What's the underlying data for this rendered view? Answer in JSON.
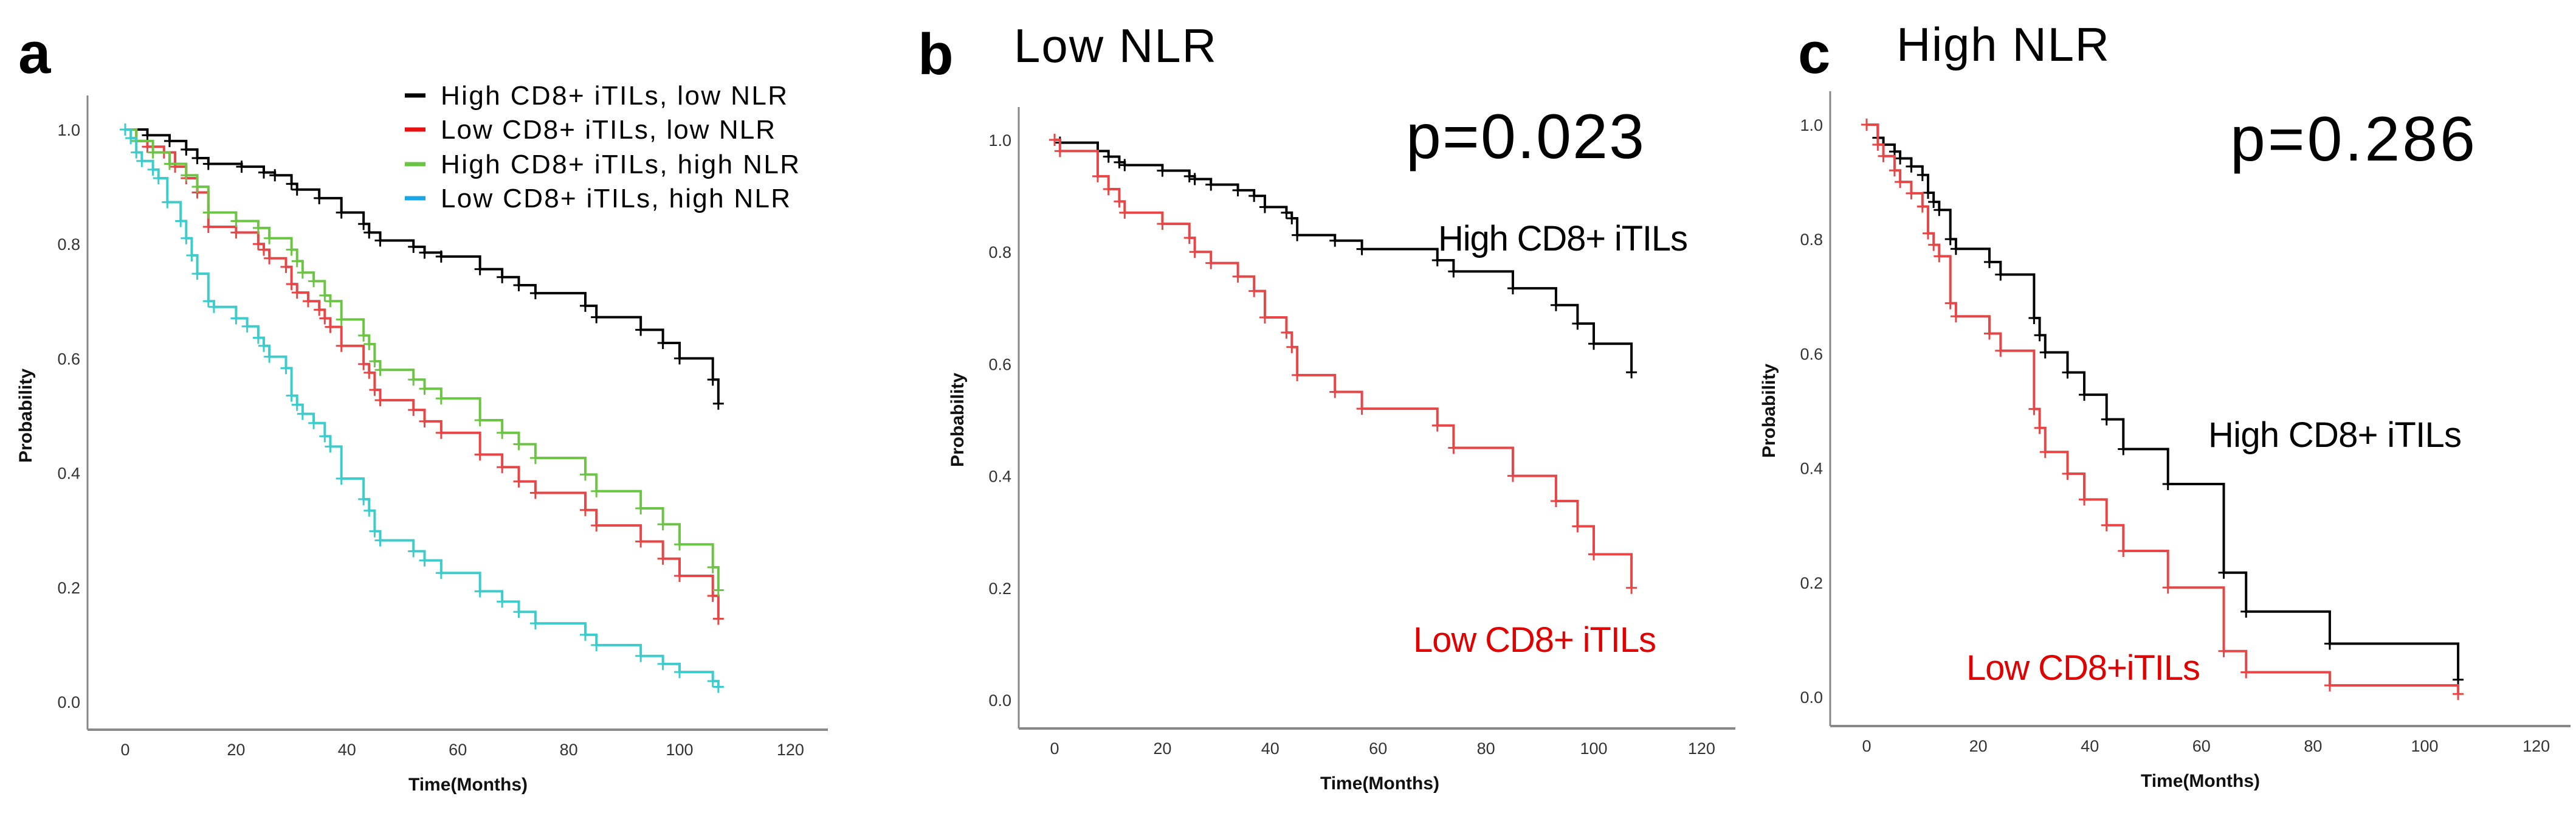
{
  "figure": {
    "panels": [
      {
        "letter": "a",
        "title": "",
        "p_value": ""
      },
      {
        "letter": "b",
        "title": "Low NLR",
        "p_value": "p=0.023"
      },
      {
        "letter": "c",
        "title": "High NLR",
        "p_value": "p=0.286"
      }
    ]
  },
  "colors": {
    "black": "#000000",
    "red": "#e84646",
    "green": "#6cc444",
    "cyan": "#3ccccc",
    "legend_blue": "#1aa6e6",
    "annotation_red": "#e00000"
  },
  "chart_data": [
    {
      "type": "line",
      "title": "",
      "xlabel": "Time(Months)",
      "ylabel": "Probability",
      "xlim": [
        0,
        120
      ],
      "ylim": [
        0,
        1
      ],
      "xticks": [
        "0",
        "20",
        "40",
        "60",
        "80",
        "100",
        "120"
      ],
      "yticks": [
        "0.0",
        "0.2",
        "0.4",
        "0.6",
        "0.8",
        "1.0"
      ],
      "grid": false,
      "legend_position": "top-right",
      "series": [
        {
          "name": "High CD8+ iTILs, low NLR",
          "color": "#000000",
          "legend_color": "#000000",
          "steps": [
            [
              0,
              1
            ],
            [
              4,
              0.99
            ],
            [
              8,
              0.98
            ],
            [
              11,
              0.965
            ],
            [
              13,
              0.95
            ],
            [
              15,
              0.94
            ],
            [
              21,
              0.935
            ],
            [
              25,
              0.925
            ],
            [
              27,
              0.92
            ],
            [
              30,
              0.905
            ],
            [
              31,
              0.895
            ],
            [
              35,
              0.88
            ],
            [
              39,
              0.855
            ],
            [
              43,
              0.835
            ],
            [
              44,
              0.82
            ],
            [
              46,
              0.806
            ],
            [
              52,
              0.795
            ],
            [
              54,
              0.785
            ],
            [
              57,
              0.778
            ],
            [
              64,
              0.756
            ],
            [
              68,
              0.742
            ],
            [
              71,
              0.728
            ],
            [
              74,
              0.714
            ],
            [
              83,
              0.692
            ],
            [
              85,
              0.672
            ],
            [
              93,
              0.65
            ],
            [
              97,
              0.627
            ],
            [
              100,
              0.6
            ],
            [
              106,
              0.563
            ],
            [
              107,
              0.521
            ]
          ]
        },
        {
          "name": "Low CD8+ iTILs, low NLR",
          "color": "#e84646",
          "legend_color": "#e81010",
          "steps": [
            [
              0,
              1
            ],
            [
              2,
              0.98
            ],
            [
              4,
              0.97
            ],
            [
              7,
              0.96
            ],
            [
              9,
              0.935
            ],
            [
              11,
              0.915
            ],
            [
              13,
              0.89
            ],
            [
              15,
              0.83
            ],
            [
              20,
              0.82
            ],
            [
              24,
              0.8
            ],
            [
              25,
              0.79
            ],
            [
              26,
              0.775
            ],
            [
              29,
              0.76
            ],
            [
              30,
              0.73
            ],
            [
              31,
              0.715
            ],
            [
              33,
              0.7
            ],
            [
              35,
              0.685
            ],
            [
              36,
              0.67
            ],
            [
              37,
              0.655
            ],
            [
              39,
              0.622
            ],
            [
              43,
              0.59
            ],
            [
              44,
              0.575
            ],
            [
              45,
              0.545
            ],
            [
              46,
              0.527
            ],
            [
              52,
              0.51
            ],
            [
              54,
              0.49
            ],
            [
              57,
              0.47
            ],
            [
              64,
              0.432
            ],
            [
              68,
              0.41
            ],
            [
              71,
              0.385
            ],
            [
              74,
              0.365
            ],
            [
              83,
              0.335
            ],
            [
              85,
              0.308
            ],
            [
              93,
              0.28
            ],
            [
              97,
              0.25
            ],
            [
              100,
              0.22
            ],
            [
              106,
              0.185
            ],
            [
              107,
              0.145
            ]
          ]
        },
        {
          "name": "High CD8+ iTILs, high NLR",
          "color": "#6cc444",
          "legend_color": "#6cc444",
          "steps": [
            [
              0,
              1
            ],
            [
              2,
              0.98
            ],
            [
              5,
              0.96
            ],
            [
              8,
              0.94
            ],
            [
              11,
              0.92
            ],
            [
              13,
              0.9
            ],
            [
              15,
              0.855
            ],
            [
              20,
              0.84
            ],
            [
              24,
              0.828
            ],
            [
              26,
              0.81
            ],
            [
              30,
              0.79
            ],
            [
              31,
              0.77
            ],
            [
              32,
              0.75
            ],
            [
              34,
              0.735
            ],
            [
              36,
              0.71
            ],
            [
              37,
              0.7
            ],
            [
              39,
              0.668
            ],
            [
              43,
              0.64
            ],
            [
              44,
              0.625
            ],
            [
              45,
              0.595
            ],
            [
              46,
              0.58
            ],
            [
              52,
              0.563
            ],
            [
              54,
              0.547
            ],
            [
              57,
              0.53
            ],
            [
              64,
              0.492
            ],
            [
              68,
              0.47
            ],
            [
              71,
              0.45
            ],
            [
              74,
              0.426
            ],
            [
              83,
              0.397
            ],
            [
              85,
              0.368
            ],
            [
              93,
              0.338
            ],
            [
              97,
              0.31
            ],
            [
              100,
              0.275
            ],
            [
              106,
              0.235
            ],
            [
              107,
              0.195
            ]
          ]
        },
        {
          "name": "Low CD8+ iTILs, high NLR",
          "color": "#3ccccc",
          "legend_color": "#1aa6e6",
          "steps": [
            [
              0,
              1
            ],
            [
              1,
              0.985
            ],
            [
              2,
              0.96
            ],
            [
              3,
              0.945
            ],
            [
              5,
              0.93
            ],
            [
              6,
              0.915
            ],
            [
              7.6,
              0.873
            ],
            [
              10,
              0.84
            ],
            [
              11,
              0.81
            ],
            [
              12,
              0.78
            ],
            [
              13,
              0.748
            ],
            [
              15,
              0.7
            ],
            [
              16,
              0.69
            ],
            [
              20,
              0.67
            ],
            [
              22,
              0.656
            ],
            [
              24,
              0.636
            ],
            [
              25,
              0.622
            ],
            [
              26,
              0.603
            ],
            [
              29,
              0.583
            ],
            [
              30,
              0.535
            ],
            [
              31,
              0.519
            ],
            [
              32,
              0.503
            ],
            [
              34,
              0.487
            ],
            [
              36,
              0.464
            ],
            [
              37,
              0.446
            ],
            [
              39,
              0.39
            ],
            [
              43,
              0.354
            ],
            [
              44,
              0.334
            ],
            [
              45,
              0.298
            ],
            [
              46,
              0.282
            ],
            [
              52,
              0.263
            ],
            [
              54,
              0.247
            ],
            [
              57,
              0.225
            ],
            [
              64,
              0.193
            ],
            [
              68,
              0.175
            ],
            [
              71,
              0.157
            ],
            [
              74,
              0.137
            ],
            [
              83,
              0.117
            ],
            [
              85,
              0.099
            ],
            [
              93,
              0.08
            ],
            [
              97,
              0.066
            ],
            [
              100,
              0.052
            ],
            [
              106,
              0.036
            ],
            [
              107,
              0.026
            ]
          ]
        }
      ]
    },
    {
      "type": "line",
      "title": "Low NLR",
      "xlabel": "Time(Months)",
      "ylabel": "Probability",
      "xlim": [
        0,
        120
      ],
      "ylim": [
        0,
        1
      ],
      "xticks": [
        "0",
        "20",
        "40",
        "60",
        "80",
        "100",
        "120"
      ],
      "yticks": [
        "0.0",
        "0.2",
        "0.4",
        "0.6",
        "0.8",
        "1.0"
      ],
      "grid": false,
      "annotations": [
        "p=0.023",
        "High CD8+ iTILs",
        "Low CD8+ iTILs"
      ],
      "series": [
        {
          "name": "High CD8+ iTILs",
          "color": "#000000",
          "steps": [
            [
              0,
              1
            ],
            [
              1,
              0.995
            ],
            [
              8,
              0.98
            ],
            [
              10,
              0.97
            ],
            [
              12,
              0.96
            ],
            [
              13,
              0.955
            ],
            [
              20,
              0.945
            ],
            [
              25,
              0.935
            ],
            [
              26,
              0.93
            ],
            [
              29,
              0.92
            ],
            [
              34,
              0.91
            ],
            [
              37,
              0.9
            ],
            [
              39,
              0.88
            ],
            [
              43,
              0.87
            ],
            [
              44,
              0.86
            ],
            [
              45,
              0.83
            ],
            [
              52,
              0.82
            ],
            [
              57,
              0.805
            ],
            [
              71,
              0.785
            ],
            [
              74,
              0.765
            ],
            [
              85,
              0.735
            ],
            [
              93,
              0.705
            ],
            [
              97,
              0.672
            ],
            [
              100,
              0.636
            ],
            [
              107,
              0.585
            ]
          ]
        },
        {
          "name": "Low CD8+ iTILs",
          "color": "#e84646",
          "steps": [
            [
              0,
              1
            ],
            [
              1,
              0.98
            ],
            [
              8,
              0.935
            ],
            [
              10,
              0.912
            ],
            [
              12,
              0.89
            ],
            [
              13,
              0.87
            ],
            [
              20,
              0.85
            ],
            [
              25,
              0.825
            ],
            [
              26,
              0.8
            ],
            [
              29,
              0.78
            ],
            [
              34,
              0.756
            ],
            [
              37,
              0.73
            ],
            [
              39,
              0.683
            ],
            [
              43,
              0.656
            ],
            [
              44,
              0.63
            ],
            [
              45,
              0.58
            ],
            [
              52,
              0.55
            ],
            [
              57,
              0.52
            ],
            [
              71,
              0.49
            ],
            [
              74,
              0.45
            ],
            [
              85,
              0.4
            ],
            [
              93,
              0.355
            ],
            [
              97,
              0.31
            ],
            [
              100,
              0.26
            ],
            [
              107,
              0.2
            ]
          ]
        }
      ]
    },
    {
      "type": "line",
      "title": "High NLR",
      "xlabel": "Time(Months)",
      "ylabel": "Probability",
      "xlim": [
        0,
        120
      ],
      "ylim": [
        0,
        1
      ],
      "xticks": [
        "0",
        "20",
        "40",
        "60",
        "80",
        "100",
        "120"
      ],
      "yticks": [
        "0.0",
        "0.2",
        "0.4",
        "0.6",
        "0.8",
        "1.0"
      ],
      "grid": false,
      "annotations": [
        "p=0.286",
        "High CD8+ iTILs",
        "Low CD8+iTILs"
      ],
      "series": [
        {
          "name": "High CD8+ iTILs",
          "color": "#000000",
          "steps": [
            [
              0,
              1
            ],
            [
              2,
              0.977
            ],
            [
              3,
              0.965
            ],
            [
              5,
              0.953
            ],
            [
              6,
              0.941
            ],
            [
              8,
              0.927
            ],
            [
              10,
              0.912
            ],
            [
              11,
              0.881
            ],
            [
              12,
              0.865
            ],
            [
              13,
              0.851
            ],
            [
              15,
              0.8
            ],
            [
              16,
              0.783
            ],
            [
              22,
              0.76
            ],
            [
              24,
              0.738
            ],
            [
              30,
              0.662
            ],
            [
              31,
              0.632
            ],
            [
              32,
              0.602
            ],
            [
              36,
              0.567
            ],
            [
              39,
              0.528
            ],
            [
              43,
              0.485
            ],
            [
              46,
              0.433
            ],
            [
              54,
              0.372
            ],
            [
              64,
              0.217
            ],
            [
              68,
              0.149
            ],
            [
              83,
              0.093
            ],
            [
              106,
              0.03
            ]
          ]
        },
        {
          "name": "Low CD8+iTILs",
          "color": "#e84646",
          "steps": [
            [
              0,
              1
            ],
            [
              2,
              0.965
            ],
            [
              3,
              0.945
            ],
            [
              5,
              0.92
            ],
            [
              6,
              0.9
            ],
            [
              8,
              0.88
            ],
            [
              10,
              0.857
            ],
            [
              11,
              0.81
            ],
            [
              12,
              0.79
            ],
            [
              13,
              0.77
            ],
            [
              15,
              0.688
            ],
            [
              16,
              0.665
            ],
            [
              22,
              0.635
            ],
            [
              24,
              0.605
            ],
            [
              30,
              0.503
            ],
            [
              31,
              0.47
            ],
            [
              32,
              0.428
            ],
            [
              36,
              0.39
            ],
            [
              39,
              0.345
            ],
            [
              43,
              0.3
            ],
            [
              46,
              0.255
            ],
            [
              54,
              0.191
            ],
            [
              64,
              0.08
            ],
            [
              68,
              0.043
            ],
            [
              83,
              0.02
            ],
            [
              106,
              0.005
            ]
          ]
        }
      ]
    }
  ]
}
